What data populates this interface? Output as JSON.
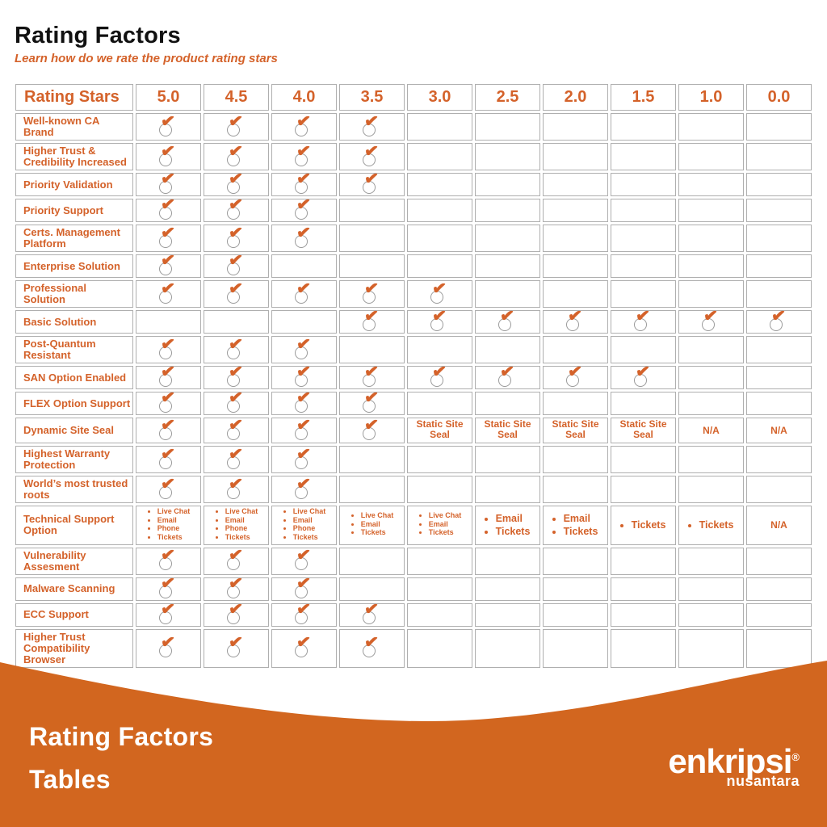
{
  "page": {
    "title": "Rating Factors",
    "subtitle": "Learn how do we rate the product rating stars"
  },
  "colors": {
    "brand_orange": "#D4622A",
    "footer_orange": "#D2661F",
    "border_gray": "#AFAFAF"
  },
  "icons": {
    "check_glyph": "✔"
  },
  "table": {
    "header": [
      "Rating Stars",
      "5.0",
      "4.5",
      "4.0",
      "3.5",
      "3.0",
      "2.5",
      "2.0",
      "1.5",
      "1.0",
      "0.0"
    ],
    "rows": [
      {
        "label": "Well-known CA Brand",
        "cells": [
          "✓",
          "✓",
          "✓",
          "✓",
          "",
          "",
          "",
          "",
          "",
          ""
        ]
      },
      {
        "label": "Higher Trust & Credibility Increased",
        "cells": [
          "✓",
          "✓",
          "✓",
          "✓",
          "",
          "",
          "",
          "",
          "",
          ""
        ]
      },
      {
        "label": "Priority Validation",
        "cells": [
          "✓",
          "✓",
          "✓",
          "✓",
          "",
          "",
          "",
          "",
          "",
          ""
        ]
      },
      {
        "label": "Priority Support",
        "cells": [
          "✓",
          "✓",
          "✓",
          "",
          "",
          "",
          "",
          "",
          "",
          ""
        ]
      },
      {
        "label": "Certs. Management Platform",
        "cells": [
          "✓",
          "✓",
          "✓",
          "",
          "",
          "",
          "",
          "",
          "",
          ""
        ]
      },
      {
        "label": "Enterprise Solution",
        "cells": [
          "✓",
          "✓",
          "",
          "",
          "",
          "",
          "",
          "",
          "",
          ""
        ]
      },
      {
        "label": "Professional Solution",
        "cells": [
          "✓",
          "✓",
          "✓",
          "✓",
          "✓",
          "",
          "",
          "",
          "",
          ""
        ]
      },
      {
        "label": "Basic Solution",
        "cells": [
          "",
          "",
          "",
          "✓",
          "✓",
          "✓",
          "✓",
          "✓",
          "✓",
          "✓"
        ]
      },
      {
        "label": "Post-Quantum Resistant",
        "cells": [
          "✓",
          "✓",
          "✓",
          "",
          "",
          "",
          "",
          "",
          "",
          ""
        ]
      },
      {
        "label": "SAN Option Enabled",
        "cells": [
          "✓",
          "✓",
          "✓",
          "✓",
          "✓",
          "✓",
          "✓",
          "✓",
          "",
          ""
        ]
      },
      {
        "label": "FLEX Option Support",
        "cells": [
          "✓",
          "✓",
          "✓",
          "✓",
          "",
          "",
          "",
          "",
          "",
          ""
        ]
      },
      {
        "label": "Dynamic Site Seal",
        "cells": [
          "✓",
          "✓",
          "✓",
          "✓",
          "Static Site Seal",
          "Static Site Seal",
          "Static Site Seal",
          "Static Site Seal",
          "N/A",
          "N/A"
        ]
      },
      {
        "label": "Highest Warranty Protection",
        "cells": [
          "✓",
          "✓",
          "✓",
          "",
          "",
          "",
          "",
          "",
          "",
          ""
        ]
      },
      {
        "label": "World’s most trusted roots",
        "cells": [
          "✓",
          "✓",
          "✓",
          "",
          "",
          "",
          "",
          "",
          "",
          ""
        ]
      },
      {
        "label": "Technical Support Option",
        "cells": [
          [
            "Live Chat",
            "Email",
            "Phone",
            "Tickets"
          ],
          [
            "Live Chat",
            "Email",
            "Phone",
            "Tickets"
          ],
          [
            "Live Chat",
            "Email",
            "Phone",
            "Tickets"
          ],
          [
            "Live Chat",
            "Email",
            "Tickets"
          ],
          [
            "Live Chat",
            "Email",
            "Tickets"
          ],
          [
            "Email",
            "Tickets"
          ],
          [
            "Email",
            "Tickets"
          ],
          [
            "Tickets"
          ],
          [
            "Tickets"
          ],
          "N/A"
        ]
      },
      {
        "label": "Vulnerability Assesment",
        "cells": [
          "✓",
          "✓",
          "✓",
          "",
          "",
          "",
          "",
          "",
          "",
          ""
        ]
      },
      {
        "label": "Malware Scanning",
        "cells": [
          "✓",
          "✓",
          "✓",
          "",
          "",
          "",
          "",
          "",
          "",
          ""
        ]
      },
      {
        "label": "ECC Support",
        "cells": [
          "✓",
          "✓",
          "✓",
          "✓",
          "",
          "",
          "",
          "",
          "",
          ""
        ]
      },
      {
        "label": "Higher Trust Compatibility Browser",
        "cells": [
          "✓",
          "✓",
          "✓",
          "✓",
          "",
          "",
          "",
          "",
          "",
          ""
        ]
      }
    ]
  },
  "footer": {
    "title_line1": "Rating Factors",
    "title_line2": "Tables",
    "brand_name": "enkripsi",
    "brand_mark": "®",
    "brand_sub": "nusantara"
  }
}
